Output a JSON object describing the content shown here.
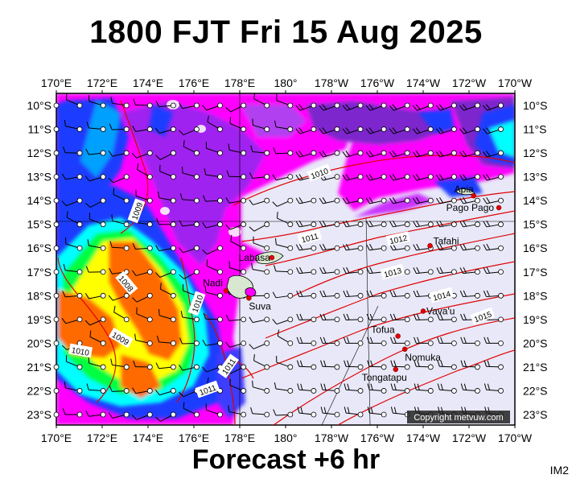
{
  "title": "1800 FJT Fri 15 Aug 2025",
  "footer": "Forecast +6 hr",
  "image_code": "IM2",
  "copyright": "Copyright metvuw.com",
  "lon_labels": [
    "170°E",
    "172°E",
    "174°E",
    "176°E",
    "178°E",
    "180°",
    "178°W",
    "176°W",
    "174°W",
    "172°W",
    "170°W"
  ],
  "lat_labels": [
    "10°S",
    "11°S",
    "12°S",
    "13°S",
    "14°S",
    "15°S",
    "16°S",
    "17°S",
    "18°S",
    "19°S",
    "20°S",
    "21°S",
    "22°S",
    "23°S"
  ],
  "places": [
    {
      "name": "Apia",
      "lon": -171.8,
      "lat": -13.8
    },
    {
      "name": "Pago Pago",
      "lon": -170.7,
      "lat": -14.3
    },
    {
      "name": "Tafahi",
      "lon": -173.7,
      "lat": -15.9
    },
    {
      "name": "Labasa",
      "lon": 179.4,
      "lat": -16.4
    },
    {
      "name": "Nadi",
      "lon": 177.4,
      "lat": -17.8
    },
    {
      "name": "Suva",
      "lon": 178.4,
      "lat": -18.1
    },
    {
      "name": "Vava'u",
      "lon": -174.0,
      "lat": -18.65
    },
    {
      "name": "Tofua",
      "lon": -175.1,
      "lat": -19.7
    },
    {
      "name": "Nomuka",
      "lon": -174.8,
      "lat": -20.25
    },
    {
      "name": "Tongatapu",
      "lon": -175.2,
      "lat": -21.1
    }
  ],
  "isobar_labels": [
    "1010",
    "1011",
    "1012",
    "1013",
    "1014",
    "1015",
    "1009",
    "1008",
    "1009",
    "1010",
    "1010",
    "1011",
    "1011"
  ],
  "colors": {
    "pale": "#e8e8f8",
    "magenta": "#ff00ff",
    "purple": "#a020f0",
    "violet": "#7d26cd",
    "blue": "#1e3cff",
    "cyan": "#00ffff",
    "green": "#00ff40",
    "yellow": "#ffff00",
    "orange": "#ff6a00",
    "red": "#ff2a00",
    "isobar": "#e00000"
  }
}
